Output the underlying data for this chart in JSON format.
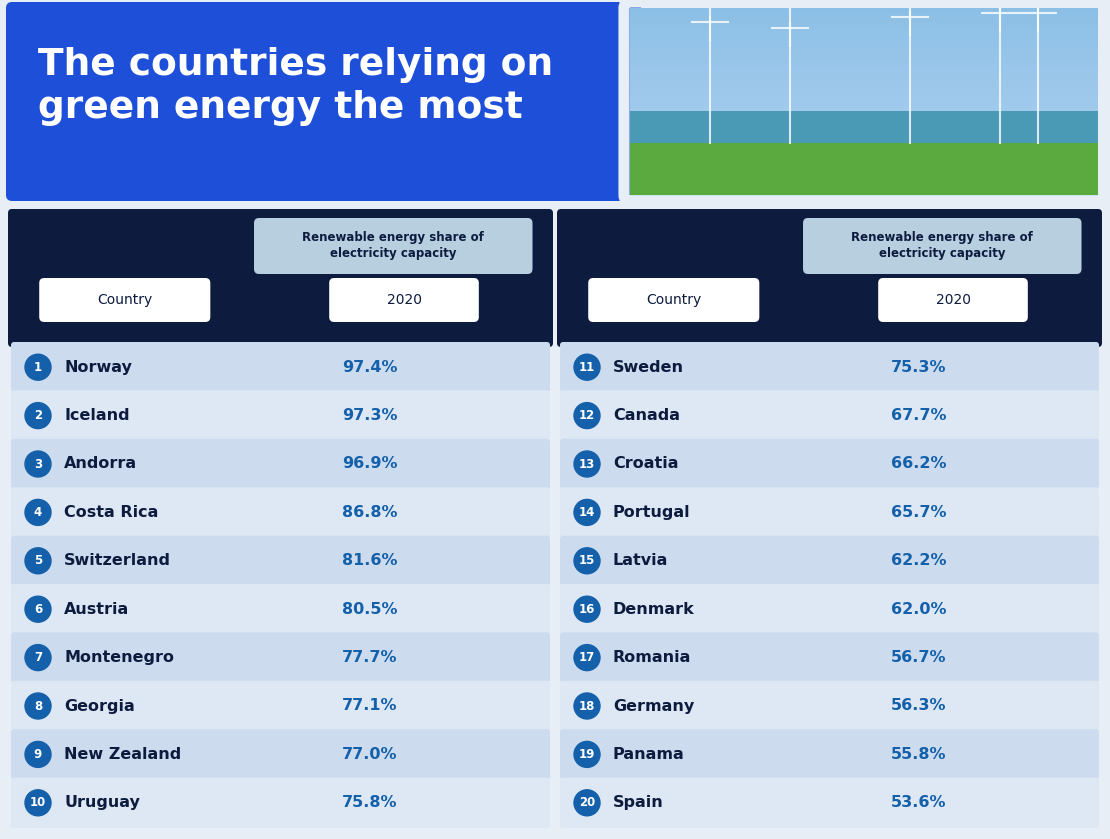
{
  "title_line1": "The countries relying on",
  "title_line2": "green energy the most",
  "title_bg": "#1e4fd8",
  "table_bg": "#0d1b3e",
  "row_bg_odd": "#ccdcee",
  "row_bg_even": "#dde8f4",
  "header_pill_bg": "#b8cfe0",
  "header_pill_text": "#0d1b3e",
  "country_text": "#0d1b3e",
  "value_text": "#1460aa",
  "badge_bg": "#1460aa",
  "badge_text": "#ffffff",
  "fig_bg": "#e8eef5",
  "col_header_text": "Renewable energy share of\nelectricity capacity",
  "country_col_label": "Country",
  "year_col_label": "2020",
  "left_data": [
    {
      "rank": 1,
      "country": "Norway",
      "value": "97.4%"
    },
    {
      "rank": 2,
      "country": "Iceland",
      "value": "97.3%"
    },
    {
      "rank": 3,
      "country": "Andorra",
      "value": "96.9%"
    },
    {
      "rank": 4,
      "country": "Costa Rica",
      "value": "86.8%"
    },
    {
      "rank": 5,
      "country": "Switzerland",
      "value": "81.6%"
    },
    {
      "rank": 6,
      "country": "Austria",
      "value": "80.5%"
    },
    {
      "rank": 7,
      "country": "Montenegro",
      "value": "77.7%"
    },
    {
      "rank": 8,
      "country": "Georgia",
      "value": "77.1%"
    },
    {
      "rank": 9,
      "country": "New Zealand",
      "value": "77.0%"
    },
    {
      "rank": 10,
      "country": "Uruguay",
      "value": "75.8%"
    }
  ],
  "right_data": [
    {
      "rank": 11,
      "country": "Sweden",
      "value": "75.3%"
    },
    {
      "rank": 12,
      "country": "Canada",
      "value": "67.7%"
    },
    {
      "rank": 13,
      "country": "Croatia",
      "value": "66.2%"
    },
    {
      "rank": 14,
      "country": "Portugal",
      "value": "65.7%"
    },
    {
      "rank": 15,
      "country": "Latvia",
      "value": "62.2%"
    },
    {
      "rank": 16,
      "country": "Denmark",
      "value": "62.0%"
    },
    {
      "rank": 17,
      "country": "Romania",
      "value": "56.7%"
    },
    {
      "rank": 18,
      "country": "Germany",
      "value": "56.3%"
    },
    {
      "rank": 19,
      "country": "Panama",
      "value": "55.8%"
    },
    {
      "rank": 20,
      "country": "Spain",
      "value": "53.6%"
    }
  ]
}
